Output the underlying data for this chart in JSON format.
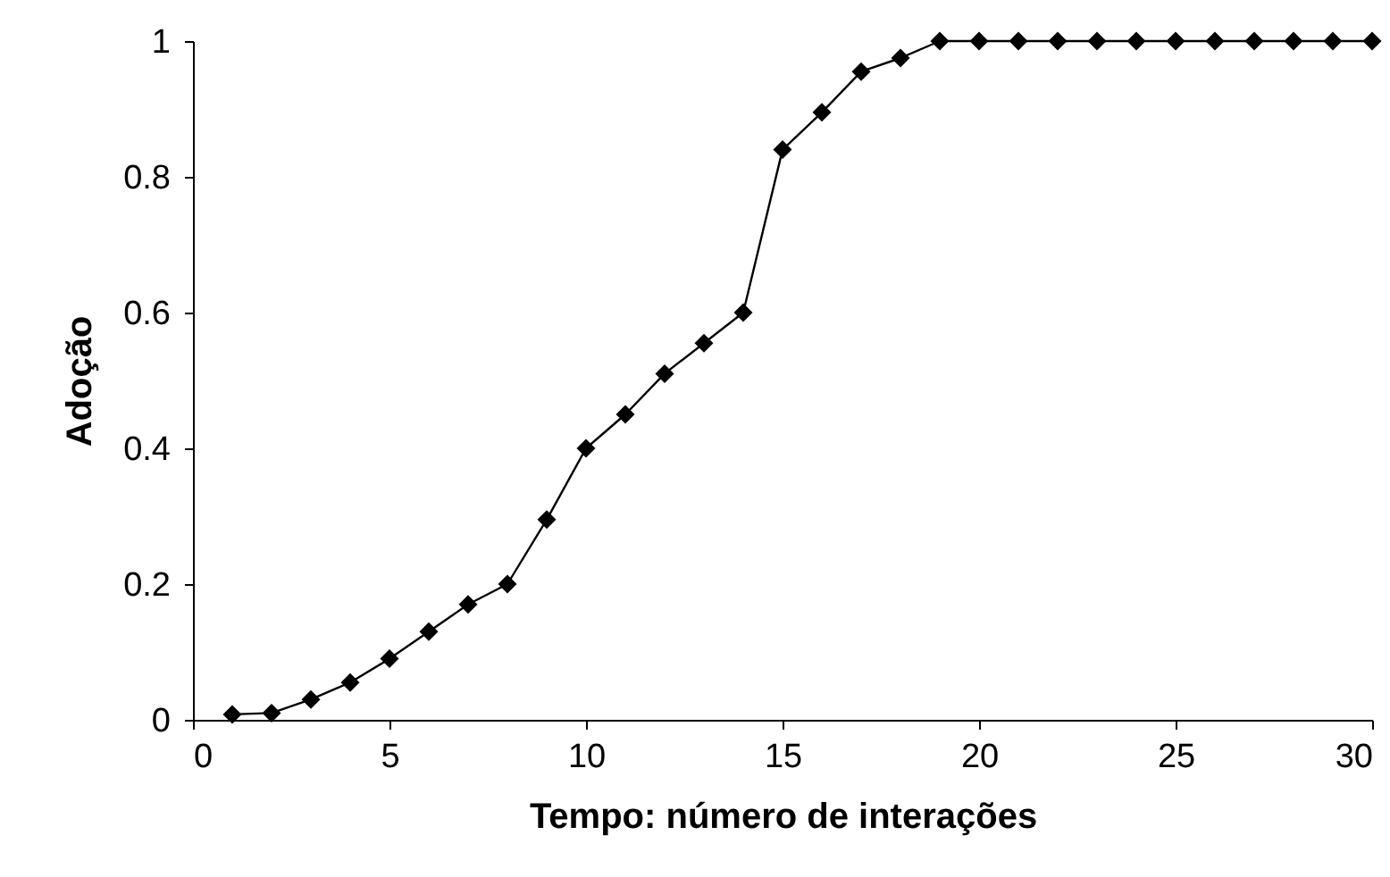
{
  "chart_data": {
    "type": "line",
    "xlabel": "Tempo: número de interações",
    "ylabel": "Adoção",
    "x": [
      1,
      2,
      3,
      4,
      5,
      6,
      7,
      8,
      9,
      10,
      11,
      12,
      13,
      14,
      15,
      16,
      17,
      18,
      19,
      20,
      21,
      22,
      23,
      24,
      25,
      26,
      27,
      28,
      29,
      30
    ],
    "series": [
      {
        "color": "#000000",
        "values": [
          0.008,
          0.01,
          0.03,
          0.055,
          0.09,
          0.13,
          0.17,
          0.2,
          0.295,
          0.4,
          0.45,
          0.51,
          0.555,
          0.6,
          0.84,
          0.895,
          0.955,
          0.975,
          1,
          1,
          1,
          1,
          1,
          1,
          1,
          1,
          1,
          1,
          1,
          1
        ]
      }
    ],
    "xlim": [
      0,
      30
    ],
    "xticks": [
      0,
      5,
      10,
      15,
      20,
      25,
      30
    ],
    "ylim": [
      0,
      1
    ],
    "yticks": [
      0,
      0.2,
      0.4,
      0.6,
      0.8,
      1
    ],
    "grid": false,
    "marker": "diamond",
    "line_style": "solid"
  }
}
